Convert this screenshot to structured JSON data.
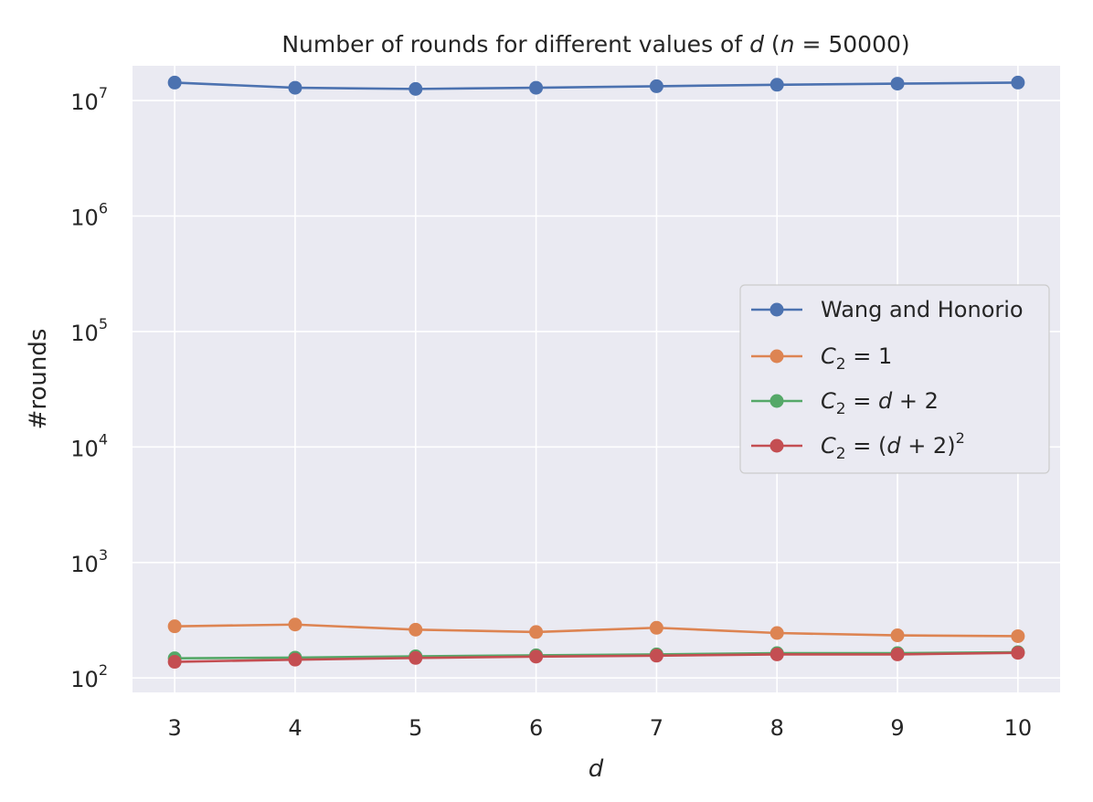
{
  "chart_data": {
    "type": "line",
    "title": "Number of rounds for different values of d (n = 50000)",
    "xlabel": "d",
    "ylabel": "#rounds",
    "x": [
      3,
      4,
      5,
      6,
      7,
      8,
      9,
      10
    ],
    "x_ticks": [
      "3",
      "4",
      "5",
      "6",
      "7",
      "8",
      "9",
      "10"
    ],
    "xlim": [
      2.65,
      10.35
    ],
    "y_scale": "log",
    "ylim": [
      75,
      20000000
    ],
    "y_ticks": [
      {
        "value": 100,
        "base": "10",
        "exp": "2"
      },
      {
        "value": 1000,
        "base": "10",
        "exp": "3"
      },
      {
        "value": 10000,
        "base": "10",
        "exp": "4"
      },
      {
        "value": 100000,
        "base": "10",
        "exp": "5"
      },
      {
        "value": 1000000,
        "base": "10",
        "exp": "6"
      },
      {
        "value": 10000000,
        "base": "10",
        "exp": "7"
      }
    ],
    "grid": true,
    "legend_position": "center-right",
    "series": [
      {
        "name": "Wang and Honorio",
        "color": "#4c72b0",
        "values": [
          14300000,
          12900000,
          12600000,
          12900000,
          13300000,
          13700000,
          14000000,
          14300000
        ]
      },
      {
        "name": "C2 = 1",
        "color": "#dd8452",
        "values": [
          280,
          290,
          262,
          250,
          272,
          245,
          234,
          230
        ]
      },
      {
        "name": "C2 = d + 2",
        "color": "#55a868",
        "values": [
          148,
          150,
          154,
          157,
          160,
          164,
          164,
          167
        ]
      },
      {
        "name": "C2 = (d + 2)^2",
        "color": "#c44e52",
        "values": [
          138,
          144,
          149,
          153,
          156,
          160,
          160,
          165
        ]
      }
    ]
  }
}
